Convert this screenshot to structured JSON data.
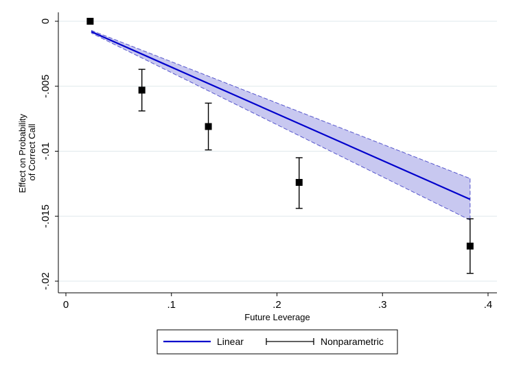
{
  "chart_data": {
    "type": "line",
    "xlabel": "Future Leverage",
    "ylabel_lines": [
      "Effect on Probability",
      "of Correct Call"
    ],
    "xlim": [
      0,
      0.4
    ],
    "ylim": [
      -0.02,
      0
    ],
    "x_ticks": [
      {
        "value": 0,
        "label": "0"
      },
      {
        "value": 0.1,
        "label": ".1"
      },
      {
        "value": 0.2,
        "label": ".2"
      },
      {
        "value": 0.3,
        "label": ".3"
      },
      {
        "value": 0.4,
        "label": ".4"
      }
    ],
    "y_ticks": [
      {
        "value": 0,
        "label": "0"
      },
      {
        "value": -0.005,
        "label": "-.005"
      },
      {
        "value": -0.01,
        "label": "-.01"
      },
      {
        "value": -0.015,
        "label": "-.015"
      },
      {
        "value": -0.02,
        "label": "-.02"
      }
    ],
    "grid": "horizontal",
    "legend_position": "bottom",
    "series": [
      {
        "name": "Linear",
        "kind": "line-with-ci-band",
        "color": "#0000CC",
        "band_fill": "#C8C8F0",
        "band_edge": "#5555CC",
        "x": [
          0.024,
          0.383
        ],
        "y": [
          -0.0008,
          -0.0137
        ],
        "ci_upper": [
          -0.0007,
          -0.0121
        ],
        "ci_lower": [
          -0.0009,
          -0.0153
        ]
      },
      {
        "name": "Nonparametric",
        "kind": "points-with-error-bars",
        "color": "#000000",
        "points": [
          {
            "x": 0.023,
            "y": 0.0,
            "lo": null,
            "hi": null
          },
          {
            "x": 0.072,
            "y": -0.0053,
            "lo": -0.0069,
            "hi": -0.0037
          },
          {
            "x": 0.135,
            "y": -0.0081,
            "lo": -0.0099,
            "hi": -0.0063
          },
          {
            "x": 0.221,
            "y": -0.0124,
            "lo": -0.0144,
            "hi": -0.0105
          },
          {
            "x": 0.383,
            "y": -0.0173,
            "lo": -0.0194,
            "hi": -0.0152
          }
        ]
      }
    ],
    "legend": {
      "linear_label": "Linear",
      "nonparametric_label": "Nonparametric"
    }
  }
}
